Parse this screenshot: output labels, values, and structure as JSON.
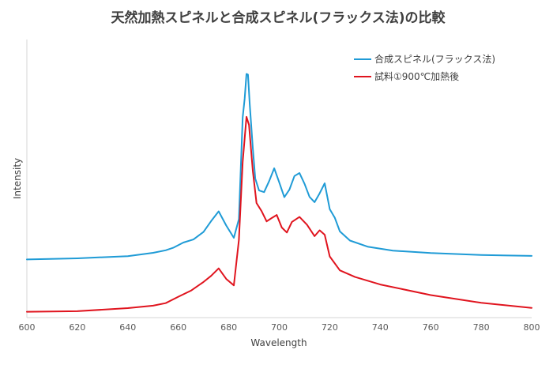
{
  "chart_data": {
    "type": "line",
    "title": "天然加熱スピネルと合成スピネル(フラックス法)の比較",
    "xlabel": "Wavelength",
    "ylabel": "Intensity",
    "xlim": [
      600,
      800
    ],
    "ylim": [
      0,
      100
    ],
    "x_ticks": [
      600,
      620,
      640,
      660,
      680,
      700,
      720,
      740,
      760,
      780,
      800
    ],
    "y_ticks_shown": false,
    "grid": false,
    "legend_position": "top-right",
    "series": [
      {
        "name": "合成スピネル(フラックス法)",
        "color": "#1f9bd6",
        "x": [
          600,
          620,
          640,
          650,
          655,
          658,
          662,
          666,
          670,
          673,
          676,
          679,
          682,
          684,
          685.5,
          686.3,
          687,
          687.6,
          688.3,
          689.5,
          690.5,
          692,
          694,
          696,
          698,
          700,
          702,
          704,
          706,
          708,
          710,
          712,
          714,
          716,
          718,
          720,
          722,
          724,
          728,
          735,
          745,
          760,
          780,
          800
        ],
        "y": [
          20.9,
          21.3,
          22.1,
          23.3,
          24.2,
          25.1,
          27.0,
          28.1,
          30.8,
          34.7,
          38.2,
          33.1,
          28.7,
          35.4,
          72.0,
          78.7,
          87.6,
          87.4,
          76.8,
          61.0,
          50.0,
          45.7,
          45.1,
          49.1,
          53.7,
          48.6,
          43.3,
          46.0,
          50.9,
          52.0,
          48.1,
          43.4,
          41.5,
          44.7,
          48.3,
          39.0,
          35.9,
          31.0,
          27.7,
          25.5,
          24.1,
          23.2,
          22.5,
          22.2
        ]
      },
      {
        "name": "試料①900℃加熱後",
        "color": "#e0141e",
        "x": [
          600,
          620,
          640,
          650,
          655,
          660,
          665,
          670,
          673,
          676,
          679,
          682,
          684,
          685.5,
          687,
          688,
          689.5,
          691,
          693,
          695,
          697,
          699,
          701,
          703,
          705,
          708,
          711,
          714,
          716,
          718,
          720,
          724,
          730,
          740,
          760,
          780,
          800
        ],
        "y": [
          2.1,
          2.3,
          3.4,
          4.3,
          5.2,
          7.5,
          9.7,
          12.8,
          15.0,
          17.7,
          13.9,
          11.6,
          27.9,
          56.0,
          72.2,
          69.3,
          52.8,
          41.2,
          38.3,
          34.6,
          35.8,
          36.9,
          32.4,
          30.6,
          34.4,
          36.2,
          33.4,
          29.3,
          31.4,
          29.8,
          22.0,
          17.0,
          14.6,
          11.9,
          8.1,
          5.3,
          3.5
        ]
      }
    ]
  }
}
